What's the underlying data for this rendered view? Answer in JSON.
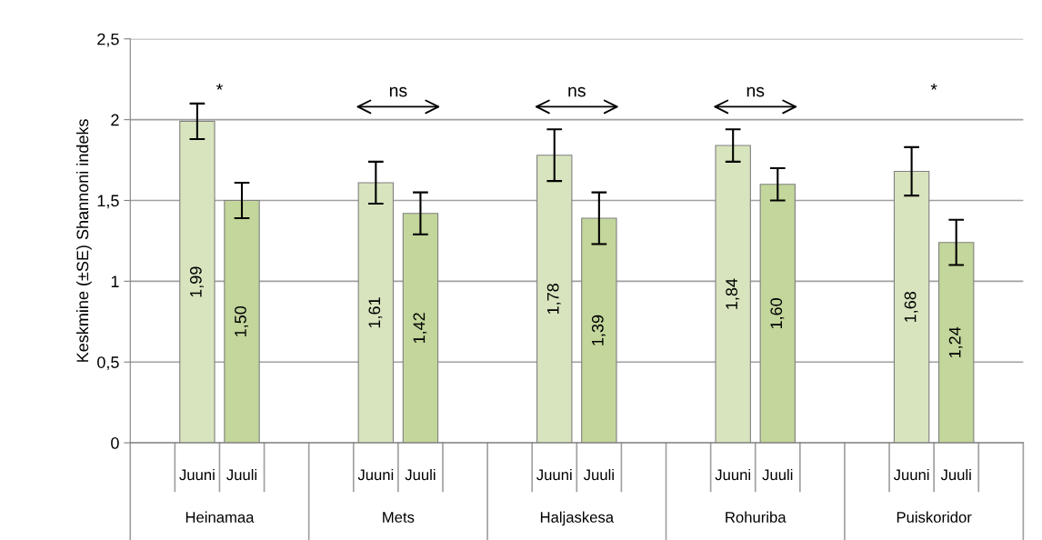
{
  "chart_data": {
    "type": "bar",
    "ylabel": "Keskmine (±SE) Shannoni indeks",
    "categories": [
      null,
      "Juuni",
      "Juuli",
      null,
      null,
      "Juuni",
      "Juuli",
      null,
      null,
      "Juuni",
      "Juuli",
      null,
      null,
      "Juuni",
      "Juuli",
      null,
      null,
      "Juuni",
      "Juuli",
      null
    ],
    "values": [
      null,
      1.99,
      1.5,
      null,
      null,
      1.61,
      1.42,
      null,
      null,
      1.78,
      1.39,
      null,
      null,
      1.84,
      1.6,
      null,
      null,
      1.68,
      1.24,
      null
    ],
    "errors": [
      null,
      0.11,
      0.11,
      null,
      null,
      0.13,
      0.13,
      null,
      null,
      0.16,
      0.16,
      null,
      null,
      0.1,
      0.1,
      null,
      null,
      0.15,
      0.14,
      null
    ],
    "value_labels": [
      null,
      "1,99",
      "1,50",
      null,
      null,
      "1,61",
      "1,42",
      null,
      null,
      "1,78",
      "1,39",
      null,
      null,
      "1,84",
      "1,60",
      null,
      null,
      "1,68",
      "1,24",
      null
    ],
    "colors": [
      null,
      "#d7e4bd",
      "#c3d69b",
      null,
      null,
      "#d7e4bd",
      "#c3d69b",
      null,
      null,
      "#d7e4bd",
      "#c3d69b",
      null,
      null,
      "#d7e4bd",
      "#c3d69b",
      null,
      null,
      "#d7e4bd",
      "#c3d69b",
      null
    ],
    "ylim": [
      0,
      2.5
    ],
    "yticks": [
      0,
      {
        "value": 0.5,
        "label": "0,5"
      },
      1,
      {
        "value": 1.5,
        "label": "1,5"
      },
      2,
      {
        "value": 2.5,
        "label": "2,5"
      }
    ],
    "grid": "y",
    "annotations": [
      "*",
      "ns",
      "ns",
      "ns",
      "*",
      "Heinamaa",
      "Mets",
      "Haljaskesa",
      "Rohuriba",
      "Puiskoridor"
    ]
  }
}
